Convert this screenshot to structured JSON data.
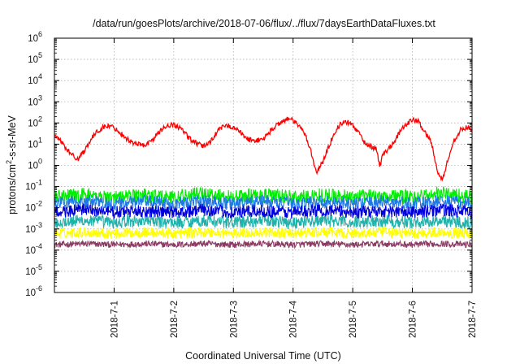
{
  "chart_data": {
    "type": "line",
    "title": "/data/run/goesPlots/archive/2018-07-06/flux/../flux/7daysEarthDataFluxes.txt",
    "xlabel": "Coordinated Universal Time (UTC)",
    "ylabel_base": "protons/cm",
    "ylabel_sup": "2",
    "ylabel_rest": "-s-sr-MeV",
    "xlim": [
      0,
      7
    ],
    "ylim_log10": [
      -6,
      6
    ],
    "yscale": "log",
    "grid": true,
    "x_ticks": [
      {
        "x": 1,
        "label": "2018-7-1"
      },
      {
        "x": 2,
        "label": "2018-7-2"
      },
      {
        "x": 3,
        "label": "2018-7-3"
      },
      {
        "x": 4,
        "label": "2018-7-4"
      },
      {
        "x": 5,
        "label": "2018-7-5"
      },
      {
        "x": 6,
        "label": "2018-7-6"
      },
      {
        "x": 7,
        "label": "2018-7-7"
      }
    ],
    "y_ticks": [
      {
        "exp": 6,
        "base": "10",
        "sup": "6"
      },
      {
        "exp": 5,
        "base": "10",
        "sup": "5"
      },
      {
        "exp": 4,
        "base": "10",
        "sup": "4"
      },
      {
        "exp": 3,
        "base": "10",
        "sup": "3"
      },
      {
        "exp": 2,
        "base": "10",
        "sup": "2"
      },
      {
        "exp": 1,
        "base": "10",
        "sup": "1"
      },
      {
        "exp": 0,
        "base": "10",
        "sup": "0"
      },
      {
        "exp": -1,
        "base": "10",
        "sup": "-1"
      },
      {
        "exp": -2,
        "base": "10",
        "sup": "-2"
      },
      {
        "exp": -3,
        "base": "10",
        "sup": "-3"
      },
      {
        "exp": -4,
        "base": "10",
        "sup": "-4"
      },
      {
        "exp": -5,
        "base": "10",
        "sup": "-5"
      },
      {
        "exp": -6,
        "base": "10",
        "sup": "-6"
      }
    ],
    "series": [
      {
        "color": "#ff0000",
        "x": [
          0.0,
          0.1,
          0.2,
          0.3,
          0.4,
          0.5,
          0.6,
          0.7,
          0.8,
          0.9,
          1.0,
          1.1,
          1.2,
          1.3,
          1.4,
          1.5,
          1.6,
          1.7,
          1.8,
          1.9,
          2.0,
          2.1,
          2.2,
          2.3,
          2.4,
          2.5,
          2.6,
          2.7,
          2.8,
          2.9,
          3.0,
          3.1,
          3.2,
          3.3,
          3.4,
          3.5,
          3.6,
          3.7,
          3.8,
          3.9,
          4.0,
          4.1,
          4.2,
          4.3,
          4.35,
          4.4,
          4.5,
          4.6,
          4.7,
          4.8,
          4.9,
          5.0,
          5.1,
          5.2,
          5.3,
          5.4,
          5.45,
          5.5,
          5.6,
          5.7,
          5.8,
          5.9,
          6.0,
          6.1,
          6.2,
          6.3,
          6.35,
          6.4,
          6.45,
          6.5,
          6.6,
          6.7,
          6.8,
          6.9,
          7.0
        ],
        "y": [
          25,
          15,
          6,
          3,
          2,
          5,
          15,
          35,
          60,
          75,
          60,
          35,
          20,
          12,
          10,
          9,
          12,
          25,
          50,
          80,
          80,
          60,
          30,
          15,
          10,
          8,
          12,
          30,
          60,
          75,
          65,
          40,
          20,
          15,
          15,
          18,
          35,
          70,
          110,
          160,
          130,
          70,
          30,
          5,
          1,
          0.5,
          1.5,
          8,
          40,
          90,
          110,
          80,
          35,
          12,
          8,
          6,
          0.8,
          3,
          6,
          15,
          40,
          90,
          140,
          120,
          40,
          15,
          5,
          1,
          0.3,
          0.2,
          2,
          15,
          45,
          60,
          50
        ]
      },
      {
        "color": "#00ee00",
        "x": [
          0.0,
          0.5,
          1.0,
          1.5,
          2.0,
          2.5,
          3.0,
          3.5,
          4.0,
          4.5,
          5.0,
          5.5,
          6.0,
          6.5,
          7.0
        ],
        "y": [
          0.03,
          0.04,
          0.03,
          0.04,
          0.03,
          0.05,
          0.03,
          0.04,
          0.03,
          0.04,
          0.03,
          0.04,
          0.03,
          0.05,
          0.03
        ]
      },
      {
        "color": "#1e78e6",
        "x": [
          0.0,
          0.5,
          1.0,
          1.5,
          2.0,
          2.5,
          3.0,
          3.5,
          4.0,
          4.5,
          5.0,
          5.5,
          6.0,
          6.5,
          7.0
        ],
        "y": [
          0.015,
          0.02,
          0.015,
          0.02,
          0.015,
          0.02,
          0.015,
          0.02,
          0.015,
          0.02,
          0.015,
          0.02,
          0.015,
          0.02,
          0.015
        ]
      },
      {
        "color": "#0000dd",
        "x": [
          0.0,
          0.5,
          1.0,
          1.5,
          2.0,
          2.5,
          3.0,
          3.5,
          4.0,
          4.5,
          5.0,
          5.5,
          6.0,
          6.5,
          7.0
        ],
        "y": [
          0.006,
          0.008,
          0.006,
          0.007,
          0.006,
          0.008,
          0.006,
          0.007,
          0.006,
          0.008,
          0.006,
          0.007,
          0.006,
          0.008,
          0.006
        ]
      },
      {
        "color": "#20b2aa",
        "x": [
          0.0,
          0.5,
          1.0,
          1.5,
          2.0,
          2.5,
          3.0,
          3.5,
          4.0,
          4.5,
          5.0,
          5.5,
          6.0,
          6.5,
          7.0
        ],
        "y": [
          0.002,
          0.0025,
          0.002,
          0.0025,
          0.002,
          0.0025,
          0.002,
          0.0025,
          0.002,
          0.0025,
          0.002,
          0.0025,
          0.002,
          0.0025,
          0.002
        ]
      },
      {
        "color": "#ffff00",
        "x": [
          0.0,
          0.5,
          1.0,
          1.5,
          2.0,
          2.5,
          3.0,
          3.5,
          4.0,
          4.5,
          5.0,
          5.5,
          6.0,
          6.5,
          7.0
        ],
        "y": [
          0.0006,
          0.0007,
          0.0006,
          0.0007,
          0.0006,
          0.0007,
          0.0006,
          0.0007,
          0.0006,
          0.0007,
          0.0006,
          0.0007,
          0.0006,
          0.0007,
          0.0006
        ]
      },
      {
        "color": "#8b3a62",
        "x": [
          0.0,
          0.5,
          1.0,
          1.5,
          2.0,
          2.5,
          3.0,
          3.5,
          4.0,
          4.5,
          5.0,
          5.5,
          6.0,
          6.5,
          7.0
        ],
        "y": [
          0.00018,
          0.0002,
          0.00018,
          0.0002,
          0.00018,
          0.0002,
          0.00018,
          0.0002,
          0.00018,
          0.0002,
          0.00018,
          0.0002,
          0.00018,
          0.0002,
          0.00018
        ]
      }
    ]
  }
}
